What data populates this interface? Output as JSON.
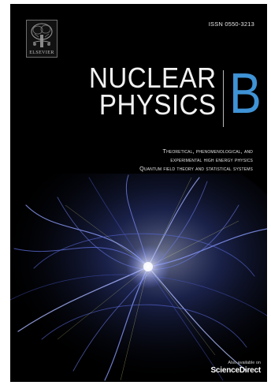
{
  "publisher": {
    "name": "ELSEVIER",
    "logo_icon": "tree-engraving-icon"
  },
  "issn": "ISSN 0550-3213",
  "journal": {
    "title_line1": "NUCLEAR",
    "title_line2": "PHYSICS",
    "section": "B"
  },
  "subtitle": {
    "line1": "Theoretical, phenomenological, and",
    "line2": "experimental high energy physics",
    "line3": "Quantum field theory and statistical systems"
  },
  "availability": {
    "prefix": "Also available on",
    "brand": "ScienceDirect"
  },
  "colors": {
    "background": "#000000",
    "accent": "#3f93d6",
    "art_glow": "#6f8dff"
  }
}
